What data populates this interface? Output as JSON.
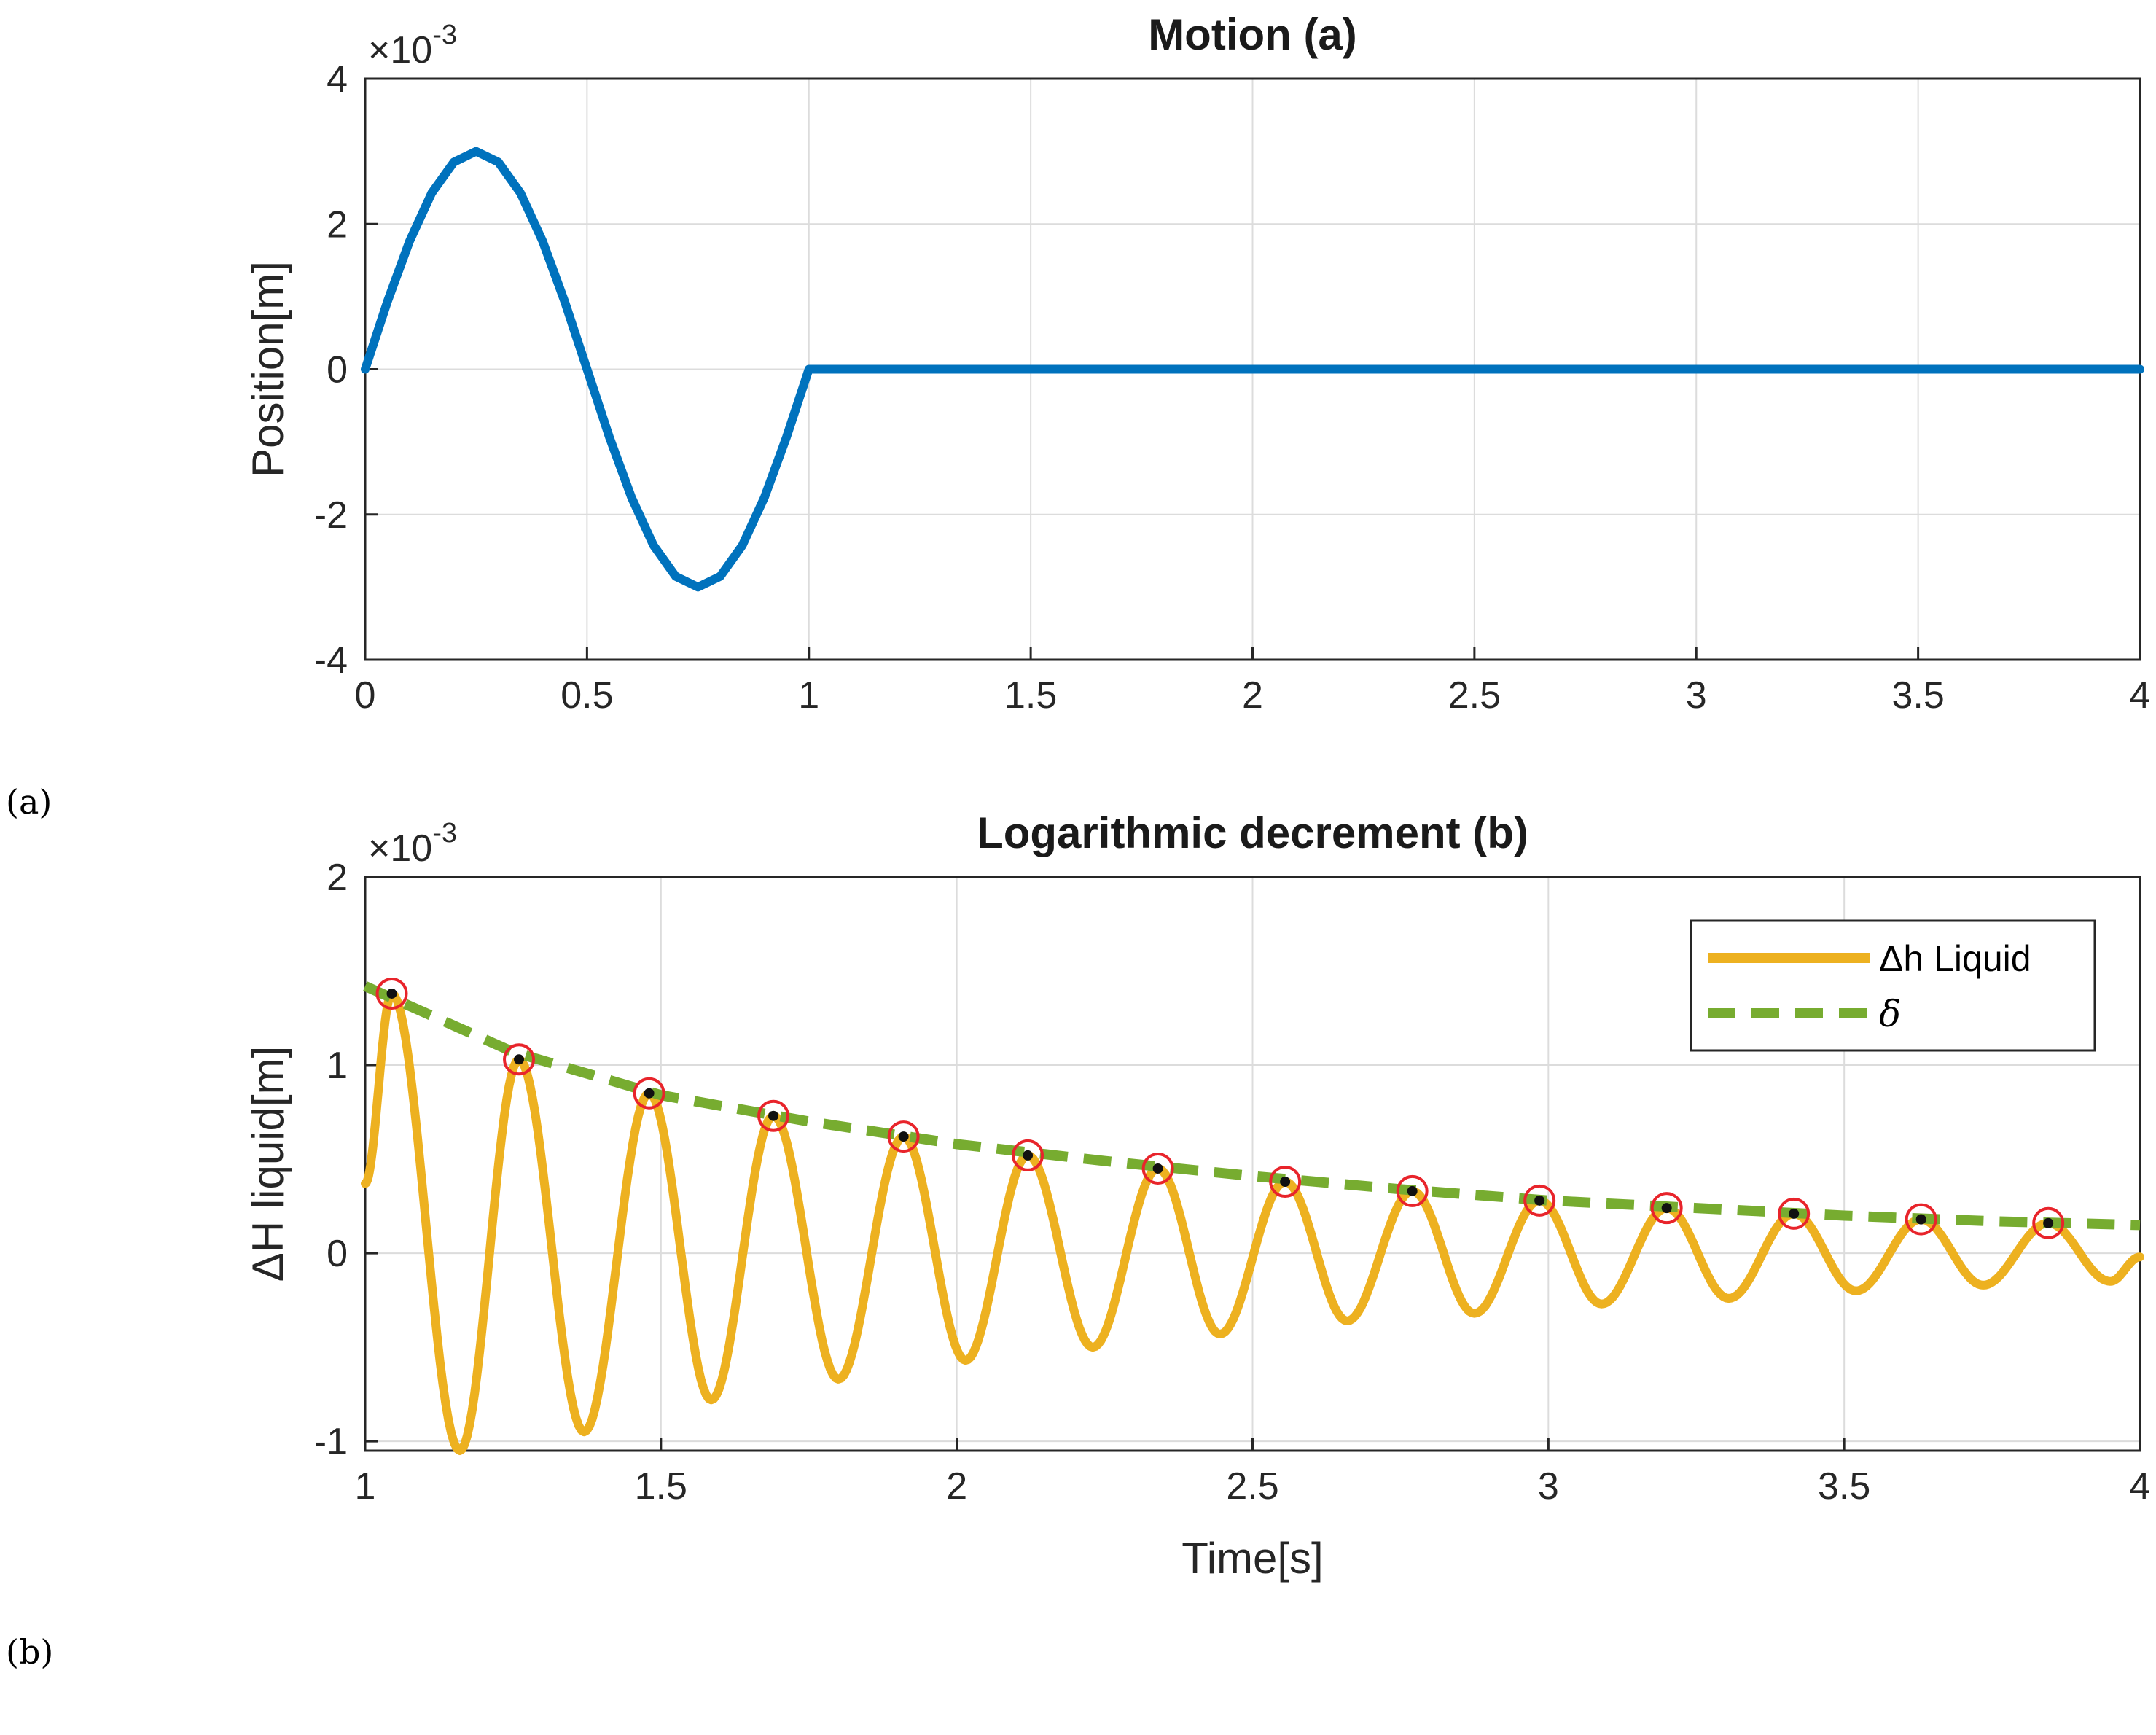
{
  "panel_labels": {
    "a": "(a)",
    "b": "(b)"
  },
  "colors": {
    "position_line": "#0072BD",
    "liquid_line": "#EDB120",
    "delta_line": "#77AC30",
    "peak_circle": "#E8242B",
    "peak_dot": "#111111",
    "grid": "#dcdcdc",
    "axis": "#262626"
  },
  "chart_data": [
    {
      "type": "line",
      "title": "Motion (a)",
      "xlabel": "",
      "ylabel": "Position[m]",
      "exponent_label": "×10",
      "exponent_power": "-3",
      "xlim": [
        0,
        4
      ],
      "ylim": [
        -4,
        4
      ],
      "xticks": [
        0,
        0.5,
        1,
        1.5,
        2,
        2.5,
        3,
        3.5,
        4
      ],
      "xtick_labels": [
        "0",
        "0.5",
        "1",
        "1.5",
        "2",
        "2.5",
        "3",
        "3.5",
        "4"
      ],
      "yticks": [
        -4,
        -2,
        0,
        2,
        4
      ],
      "ytick_labels": [
        "-4",
        "-2",
        "0",
        "2",
        "4"
      ],
      "grid": true,
      "series": [
        {
          "name": "Position",
          "description": "3e-3*sin(2*pi*t) for 0<=t<=1, then 0",
          "x": [
            0,
            0.05,
            0.1,
            0.15,
            0.2,
            0.25,
            0.3,
            0.35,
            0.4,
            0.45,
            0.5,
            0.55,
            0.6,
            0.65,
            0.7,
            0.75,
            0.8,
            0.85,
            0.9,
            0.95,
            1.0,
            4.0
          ],
          "y": [
            0,
            0.927,
            1.763,
            2.427,
            2.853,
            3.0,
            2.853,
            2.427,
            1.763,
            0.927,
            0,
            -0.927,
            -1.763,
            -2.427,
            -2.853,
            -3.0,
            -2.853,
            -2.427,
            -1.763,
            -0.927,
            0,
            0
          ]
        }
      ]
    },
    {
      "type": "line",
      "title": "Logarithmic decrement (b)",
      "xlabel": "Time[s]",
      "ylabel": "ΔH liquid[m]",
      "exponent_label": "×10",
      "exponent_power": "-3",
      "xlim": [
        1,
        4
      ],
      "ylim": [
        -1.05,
        2
      ],
      "xticks": [
        1,
        1.5,
        2,
        2.5,
        3,
        3.5,
        4
      ],
      "xtick_labels": [
        "1",
        "1.5",
        "2",
        "2.5",
        "3",
        "3.5",
        "4"
      ],
      "yticks": [
        -1,
        0,
        1,
        2
      ],
      "ytick_labels": [
        "-1",
        "0",
        "1",
        "2"
      ],
      "grid": true,
      "legend": {
        "location": "top-right",
        "entries": [
          "Δh Liquid",
          "δ"
        ]
      },
      "series": [
        {
          "name": "Δh Liquid",
          "style": "solid",
          "description": "decaying oscillation, period ~0.2143 s",
          "peaks": {
            "x": [
              1.045,
              1.26,
              1.48,
              1.69,
              1.91,
              2.12,
              2.34,
              2.555,
              2.77,
              2.985,
              3.2,
              3.415,
              3.63,
              3.845
            ],
            "y": [
              1.38,
              1.03,
              0.85,
              0.73,
              0.62,
              0.52,
              0.45,
              0.38,
              0.33,
              0.28,
              0.24,
              0.21,
              0.18,
              0.16
            ]
          },
          "troughs": {
            "x": [
              1.16,
              1.37,
              1.585,
              1.8,
              2.015,
              2.23,
              2.445,
              2.66,
              2.875,
              3.09,
              3.305,
              3.52,
              3.735,
              3.95
            ],
            "y": [
              -1.05,
              -0.95,
              -0.78,
              -0.67,
              -0.57,
              -0.5,
              -0.43,
              -0.36,
              -0.32,
              -0.27,
              -0.24,
              -0.2,
              -0.17,
              -0.15
            ]
          },
          "start": {
            "x": 1.0,
            "y": 0.37
          },
          "end": {
            "x": 4.0,
            "y": -0.02
          }
        },
        {
          "name": "δ",
          "style": "dashed",
          "description": "exponential envelope through peaks",
          "x": [
            1.0,
            1.25,
            1.5,
            1.75,
            2.0,
            2.25,
            2.5,
            2.75,
            3.0,
            3.25,
            3.5,
            3.75,
            4.0
          ],
          "y": [
            1.42,
            1.07,
            0.84,
            0.7,
            0.58,
            0.49,
            0.41,
            0.34,
            0.28,
            0.24,
            0.2,
            0.17,
            0.15
          ]
        }
      ]
    }
  ]
}
